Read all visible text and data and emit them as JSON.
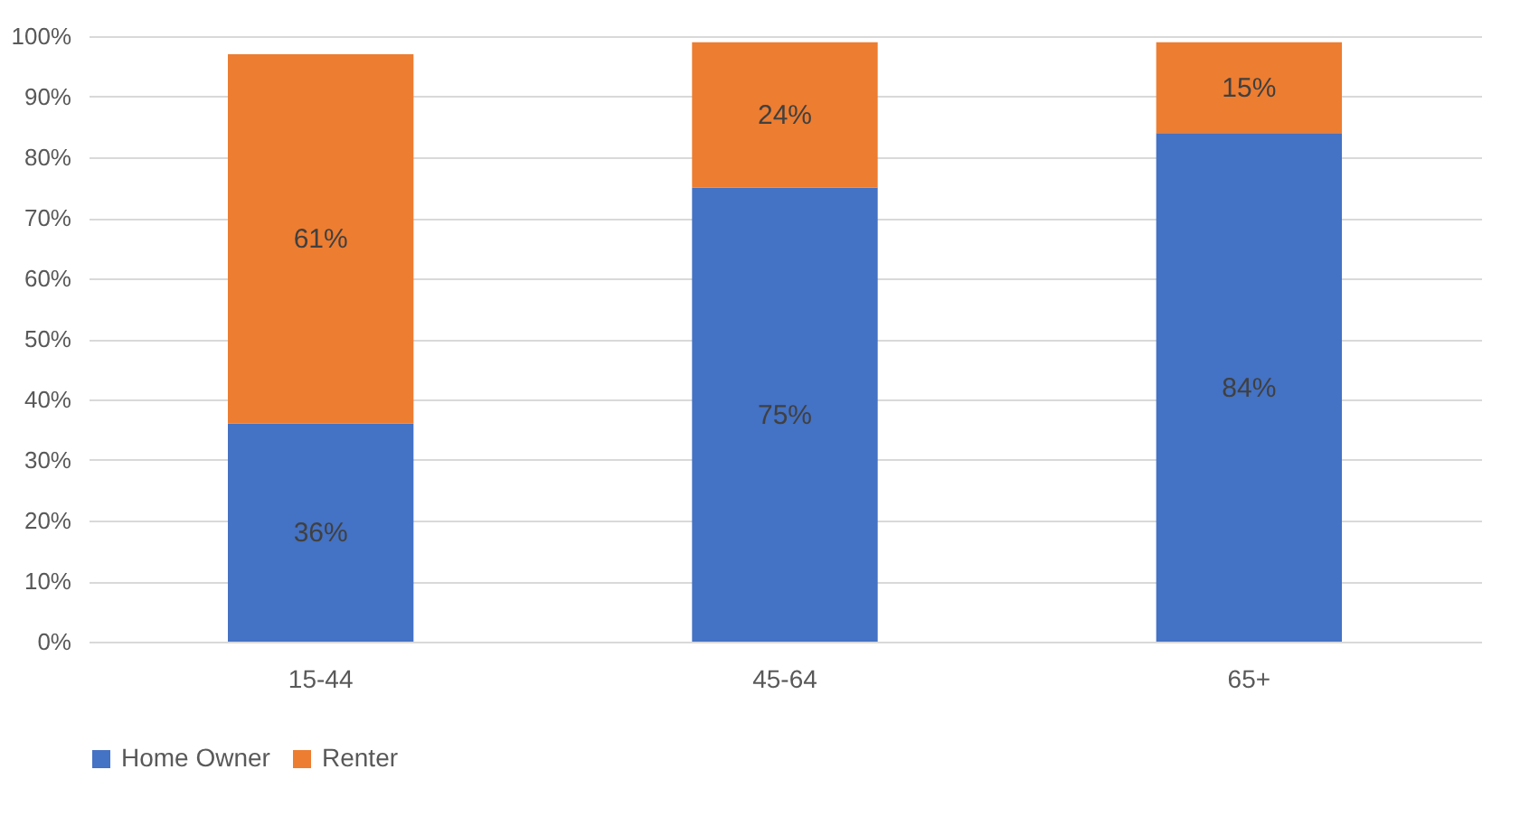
{
  "chart_data": {
    "type": "bar",
    "stacked": true,
    "categories": [
      "15-44",
      "45-64",
      "65+"
    ],
    "series": [
      {
        "name": "Home Owner",
        "color": "#4472c4",
        "values": [
          36,
          75,
          84
        ],
        "value_labels": [
          "36%",
          "75%",
          "84%"
        ]
      },
      {
        "name": "Renter",
        "color": "#ed7d31",
        "values": [
          61,
          24,
          15
        ],
        "value_labels": [
          "61%",
          "24%",
          "15%"
        ]
      }
    ],
    "ylim": [
      0,
      100
    ],
    "yticks": [
      {
        "value": 0,
        "label": "0%"
      },
      {
        "value": 10,
        "label": "10%"
      },
      {
        "value": 20,
        "label": "20%"
      },
      {
        "value": 30,
        "label": "30%"
      },
      {
        "value": 40,
        "label": "40%"
      },
      {
        "value": 50,
        "label": "50%"
      },
      {
        "value": 60,
        "label": "60%"
      },
      {
        "value": 70,
        "label": "70%"
      },
      {
        "value": 80,
        "label": "80%"
      },
      {
        "value": 90,
        "label": "90%"
      },
      {
        "value": 100,
        "label": "100%"
      }
    ],
    "grid": "y",
    "legend": "bottom"
  }
}
